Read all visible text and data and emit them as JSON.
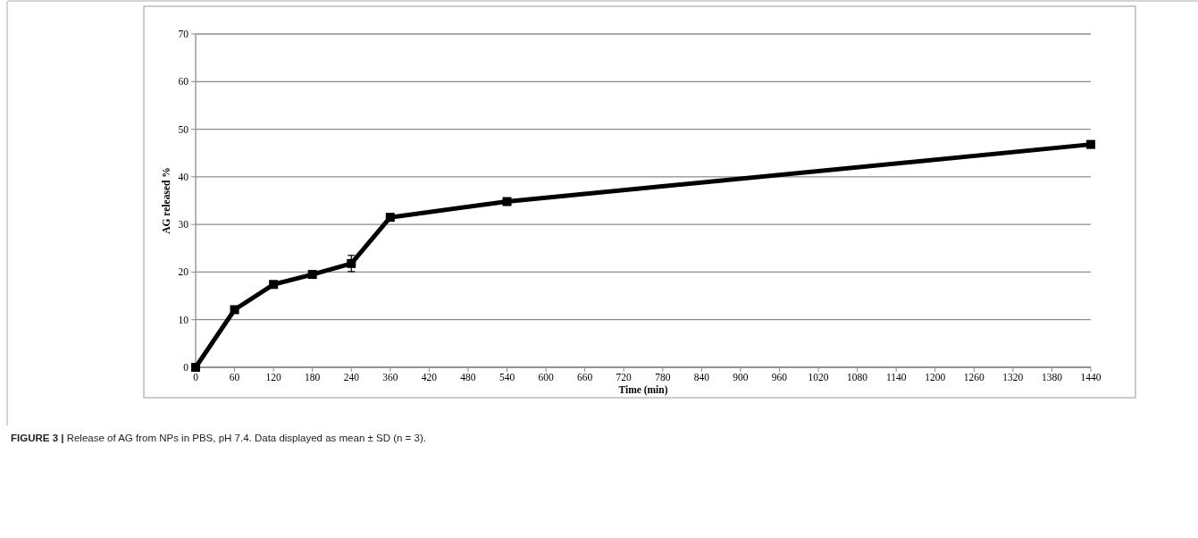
{
  "chart_data": {
    "type": "line",
    "xlabel": "Time (min)",
    "ylabel": "AG released %",
    "categories": [
      "0",
      "60",
      "120",
      "180",
      "240",
      "360",
      "420",
      "480",
      "540",
      "600",
      "660",
      "720",
      "780",
      "840",
      "900",
      "960",
      "1020",
      "1080",
      "1140",
      "1200",
      "1260",
      "1320",
      "1380",
      "1440"
    ],
    "series": [
      {
        "color": "#000000",
        "values": [
          0,
          12.1,
          17.4,
          19.5,
          21.8,
          31.5,
          null,
          null,
          34.8,
          null,
          null,
          null,
          null,
          null,
          null,
          null,
          null,
          null,
          null,
          null,
          null,
          null,
          null,
          46.8
        ],
        "errors": [
          null,
          null,
          0.7,
          null,
          1.7,
          null,
          null,
          null,
          null,
          null,
          null,
          null,
          null,
          null,
          null,
          null,
          null,
          null,
          null,
          null,
          null,
          null,
          null,
          null
        ]
      }
    ],
    "ylim": [
      0,
      70
    ],
    "yticks": [
      0,
      10,
      20,
      30,
      40,
      50,
      60,
      70
    ],
    "grid": "y",
    "marker": "square",
    "line_style": "solid",
    "annotations": [
      "FIGURE 3 | Release of AG from NPs in PBS, pH 7.4. Data displayed as mean ± SD (n = 3)."
    ]
  }
}
